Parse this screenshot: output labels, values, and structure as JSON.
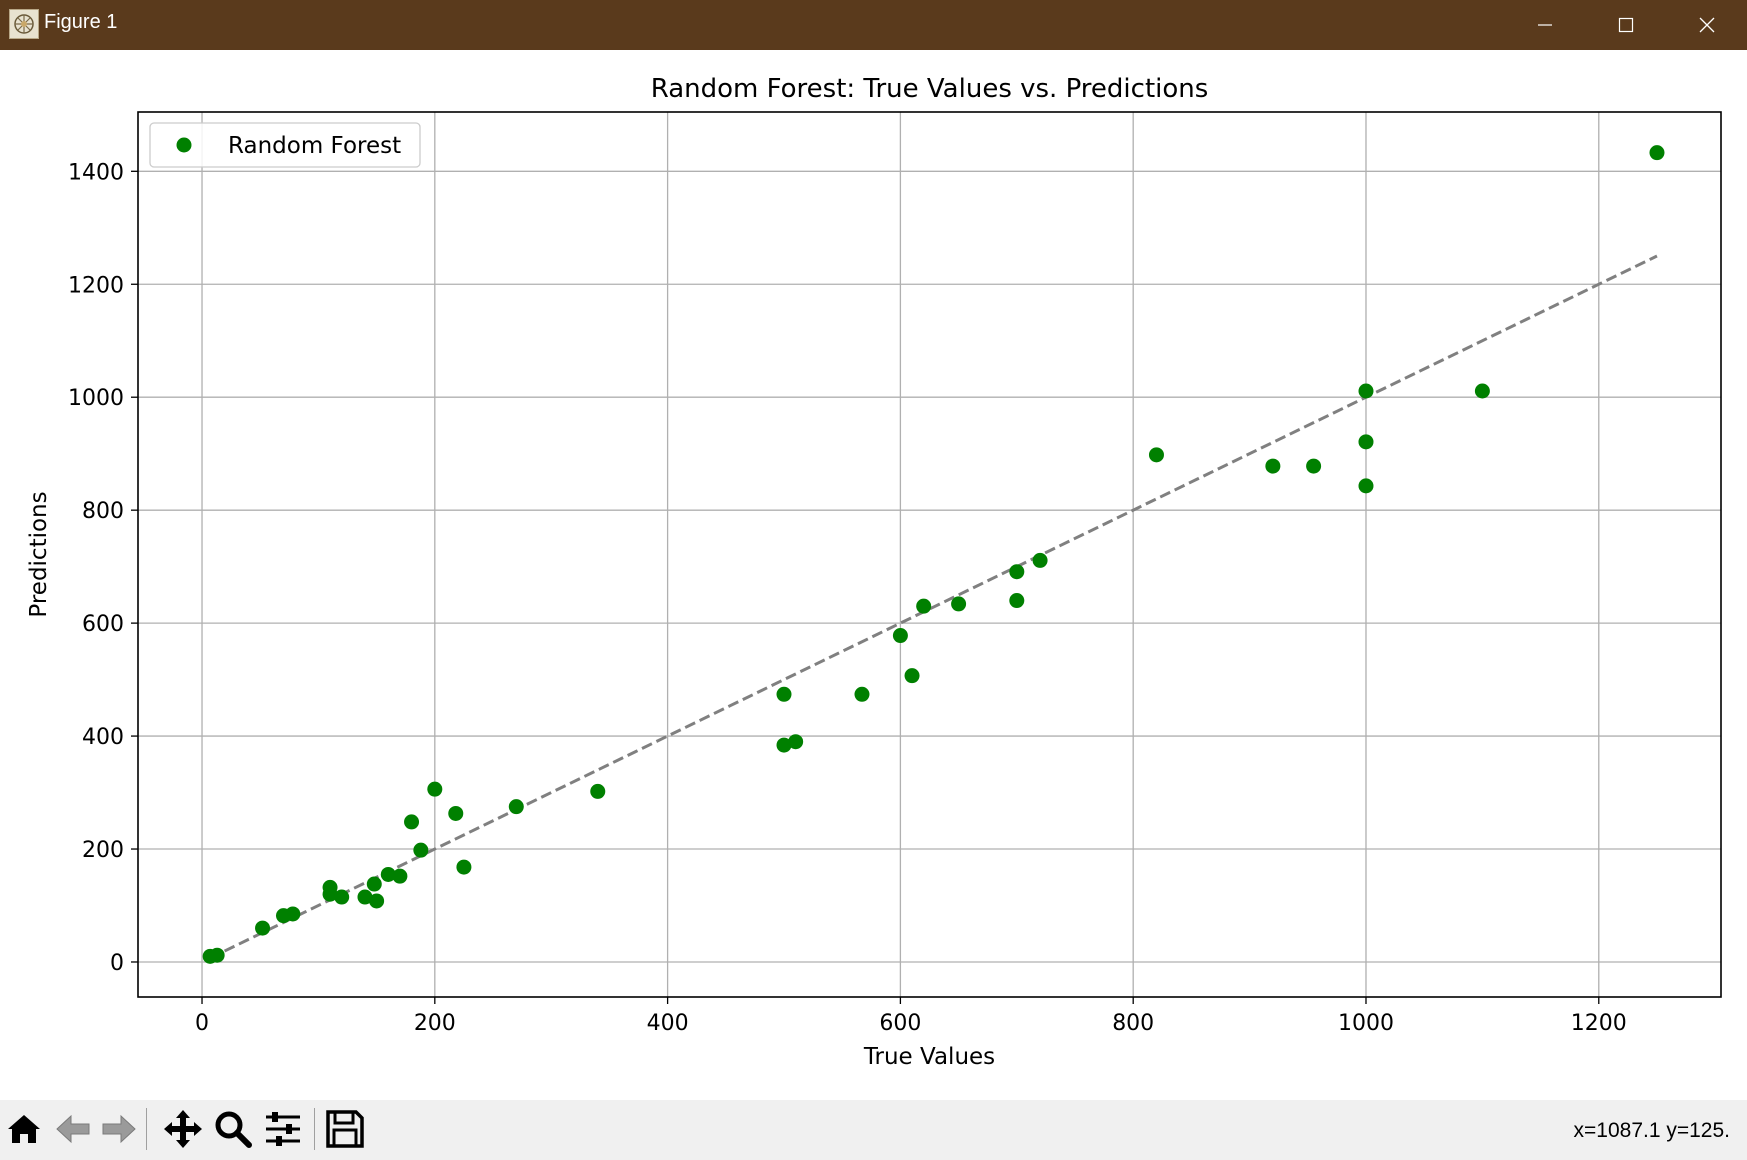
{
  "window": {
    "title": "Figure 1",
    "titlebar_color": "#5a3a1c"
  },
  "toolbar": {
    "buttons": [
      "home-icon",
      "back-arrow-icon",
      "forward-arrow-icon",
      "pan-icon",
      "zoom-icon",
      "configure-subplots-icon",
      "save-icon"
    ],
    "coords": "x=1087.1 y=125."
  },
  "chart_data": {
    "type": "scatter",
    "title": "Random Forest: True Values vs. Predictions",
    "xlabel": "True Values",
    "ylabel": "Predictions",
    "xlim": [
      -55,
      1305
    ],
    "ylim": [
      -62,
      1505
    ],
    "xticks": [
      0,
      200,
      400,
      600,
      800,
      1000,
      1200
    ],
    "yticks": [
      0,
      200,
      400,
      600,
      800,
      1000,
      1200,
      1400
    ],
    "grid": true,
    "legend": "top-left",
    "series": [
      {
        "name": "Random Forest",
        "color": "#008000",
        "marker": "circle",
        "x": [
          7,
          13,
          52,
          70,
          78,
          110,
          110,
          120,
          140,
          148,
          150,
          160,
          170,
          180,
          188,
          200,
          218,
          225,
          270,
          340,
          500,
          500,
          510,
          567,
          600,
          610,
          620,
          650,
          700,
          700,
          720,
          820,
          920,
          955,
          1000,
          1000,
          1000,
          1100,
          1250
        ],
        "y": [
          10,
          12,
          60,
          82,
          85,
          120,
          132,
          115,
          115,
          138,
          108,
          155,
          152,
          248,
          198,
          306,
          263,
          168,
          275,
          302,
          474,
          384,
          390,
          474,
          578,
          507,
          630,
          634,
          640,
          691,
          711,
          898,
          878,
          878,
          843,
          1011,
          921,
          1011,
          1433
        ]
      }
    ],
    "reference_line": {
      "style": "dashed",
      "color": "#808080",
      "x": [
        7,
        1250
      ],
      "y": [
        7,
        1250
      ]
    }
  }
}
